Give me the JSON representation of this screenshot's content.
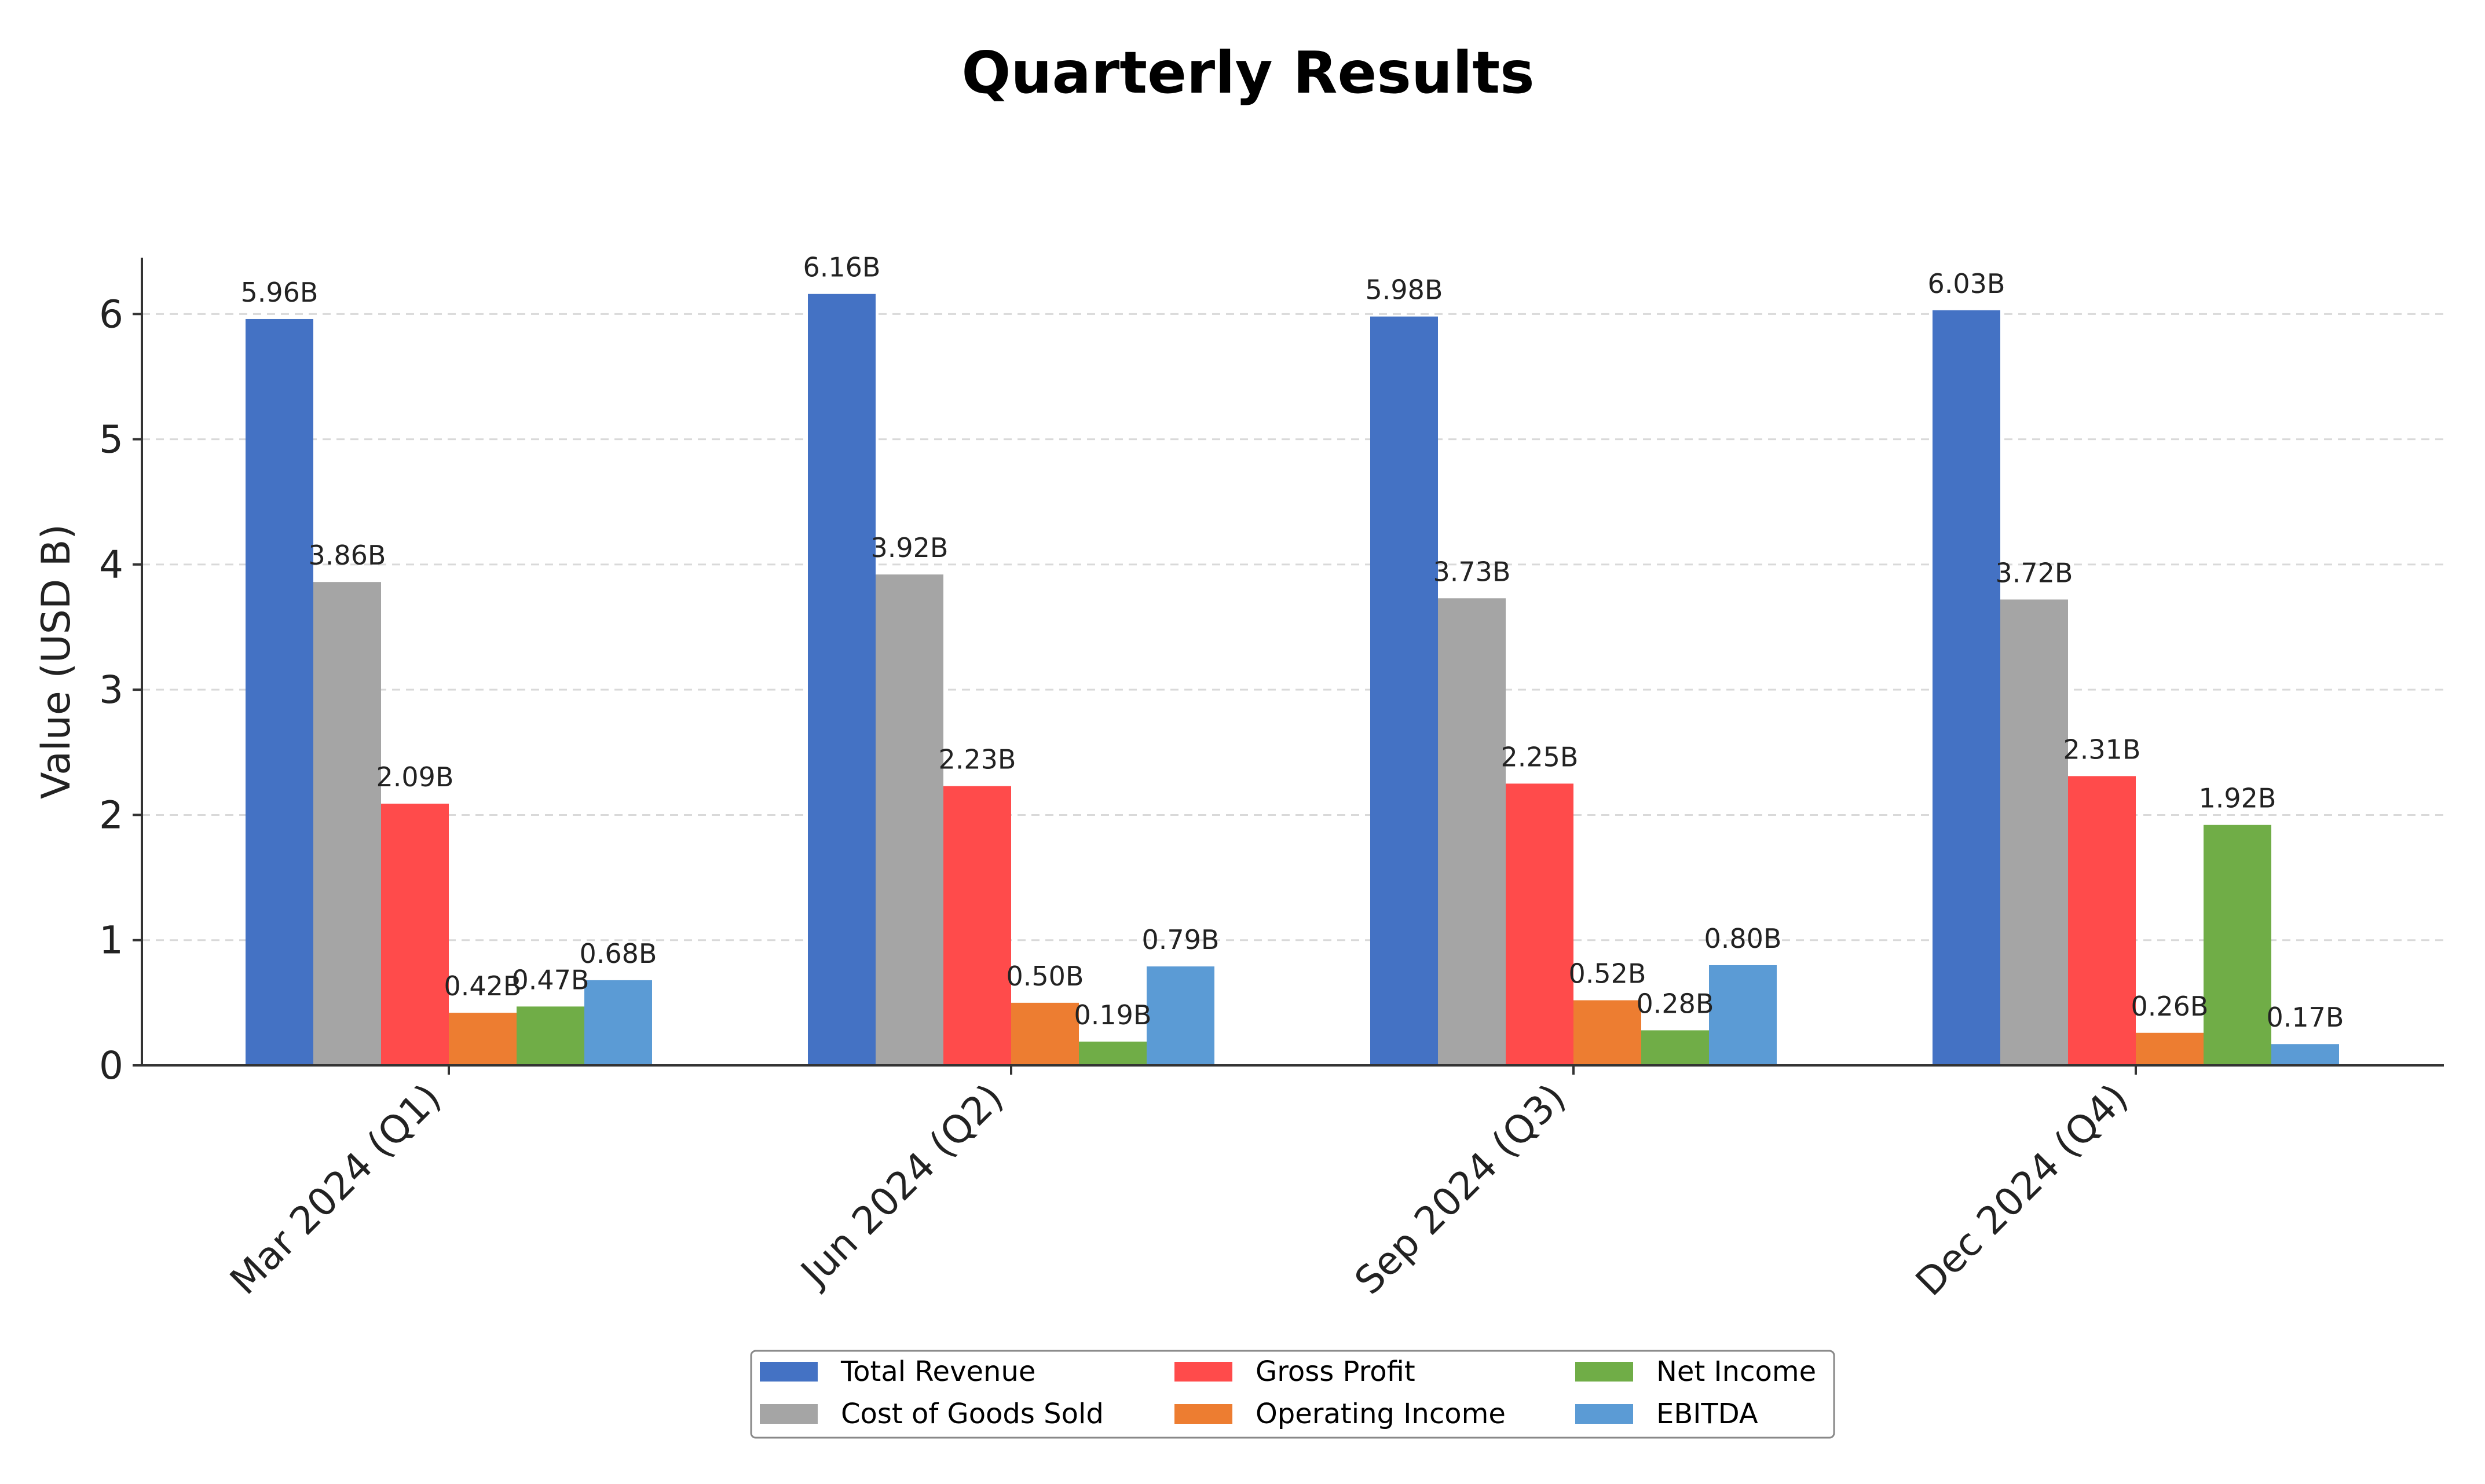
{
  "chart_data": {
    "type": "bar",
    "title": "Quarterly Results",
    "xlabel": "",
    "ylabel": "Value (USD B)",
    "ylim": [
      0,
      6.45
    ],
    "yticks": [
      0,
      1,
      2,
      3,
      4,
      5,
      6
    ],
    "categories": [
      "Mar 2024 (Q1)",
      "Jun 2024 (Q2)",
      "Sep 2024 (Q3)",
      "Dec 2024 (Q4)"
    ],
    "series": [
      {
        "name": "Total Revenue",
        "color": "#4472C4",
        "values": [
          5.96,
          6.16,
          5.98,
          6.03
        ],
        "labels": [
          "5.96B",
          "6.16B",
          "5.98B",
          "6.03B"
        ]
      },
      {
        "name": "Cost of Goods Sold",
        "color": "#A5A5A5",
        "values": [
          3.86,
          3.92,
          3.73,
          3.72
        ],
        "labels": [
          "3.86B",
          "3.92B",
          "3.73B",
          "3.72B"
        ]
      },
      {
        "name": "Gross Profit",
        "color": "#FF4B4B",
        "values": [
          2.09,
          2.23,
          2.25,
          2.31
        ],
        "labels": [
          "2.09B",
          "2.23B",
          "2.25B",
          "2.31B"
        ]
      },
      {
        "name": "Operating Income",
        "color": "#ED7D31",
        "values": [
          0.42,
          0.5,
          0.52,
          0.26
        ],
        "labels": [
          "0.42B",
          "0.50B",
          "0.52B",
          "0.26B"
        ]
      },
      {
        "name": "Net Income",
        "color": "#70AD47",
        "values": [
          0.47,
          0.19,
          0.28,
          1.92
        ],
        "labels": [
          "0.47B",
          "0.19B",
          "0.28B",
          "1.92B"
        ]
      },
      {
        "name": "EBITDA",
        "color": "#5B9BD5",
        "values": [
          0.68,
          0.79,
          0.8,
          0.17
        ],
        "labels": [
          "0.68B",
          "0.79B",
          "0.80B",
          "0.17B"
        ]
      }
    ],
    "grid": true,
    "legend_position": "bottom-center"
  }
}
